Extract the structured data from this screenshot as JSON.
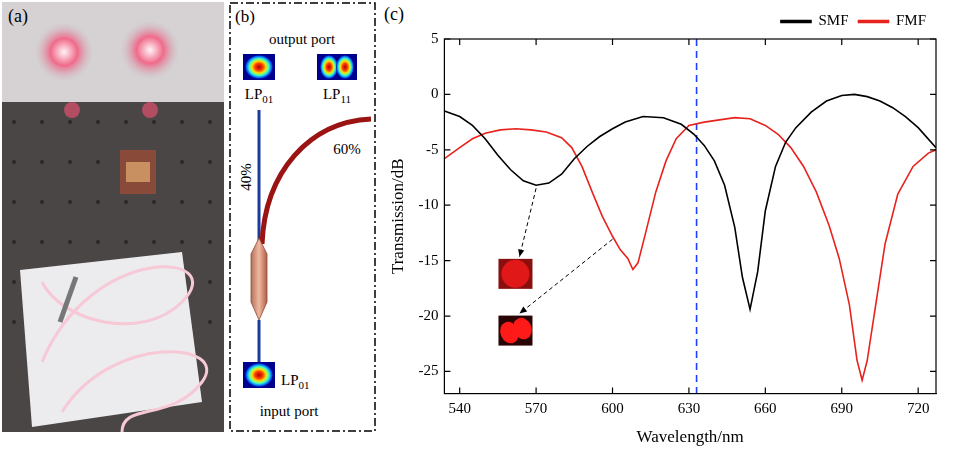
{
  "photo": {
    "label": "(a)"
  },
  "diagram": {
    "label": "(b)",
    "title_top": "output port",
    "output_modes": [
      {
        "text": "LP",
        "subscript": "01"
      },
      {
        "text": "LP",
        "subscript": "11"
      }
    ],
    "split": [
      "40%",
      "60%"
    ],
    "input_mode": {
      "text": "LP",
      "subscript": "01"
    },
    "title_bottom": "input port"
  },
  "chart_data": {
    "type": "line",
    "label": "(c)",
    "x_label": "Wavelength/nm",
    "y_label": "Transmission/dB",
    "xlim": [
      534,
      727
    ],
    "xticks": [
      540,
      570,
      600,
      630,
      660,
      690,
      720
    ],
    "ylim": [
      -27,
      5
    ],
    "yticks": [
      -25,
      -20,
      -15,
      -10,
      -5,
      0,
      5
    ],
    "grid": false,
    "legend": "top-right",
    "series": [
      {
        "name": "SMF",
        "color": "#000000",
        "line_style": "solid",
        "x": [
          534,
          540,
          545,
          550,
          555,
          560,
          565,
          570,
          575,
          580,
          585,
          590,
          595,
          600,
          605,
          612,
          620,
          627,
          632,
          636,
          640,
          644,
          648,
          651,
          654,
          657,
          660,
          664,
          668,
          672,
          678,
          684,
          690,
          695,
          700,
          705,
          710,
          715,
          720,
          727
        ],
        "values": [
          -1.5,
          -2.0,
          -2.8,
          -4.0,
          -5.5,
          -6.8,
          -7.8,
          -8.2,
          -8.0,
          -7.2,
          -5.8,
          -4.7,
          -3.8,
          -3.1,
          -2.5,
          -2.0,
          -2.1,
          -2.7,
          -3.6,
          -4.6,
          -6.0,
          -8.2,
          -12.0,
          -16.5,
          -19.4,
          -16.0,
          -10.5,
          -6.5,
          -4.3,
          -3.0,
          -1.6,
          -0.6,
          -0.1,
          0.0,
          -0.2,
          -0.6,
          -1.2,
          -2.0,
          -3.0,
          -4.8
        ]
      },
      {
        "name": "FMF",
        "color": "#e8221c",
        "line_style": "solid",
        "x": [
          534,
          540,
          545,
          550,
          556,
          562,
          568,
          574,
          580,
          584,
          588,
          592,
          596,
          600,
          603,
          606,
          608,
          610,
          613,
          617,
          621,
          625,
          630,
          636,
          642,
          648,
          654,
          660,
          665,
          670,
          675,
          680,
          685,
          689,
          693,
          696,
          698,
          700,
          703,
          707,
          712,
          718,
          724,
          727
        ],
        "values": [
          -5.8,
          -4.8,
          -4.0,
          -3.5,
          -3.2,
          -3.1,
          -3.2,
          -3.4,
          -3.9,
          -4.8,
          -6.5,
          -8.8,
          -11.0,
          -12.8,
          -14.0,
          -14.8,
          -15.8,
          -15.2,
          -12.5,
          -8.8,
          -6.0,
          -4.0,
          -2.8,
          -2.5,
          -2.3,
          -2.1,
          -2.2,
          -2.8,
          -3.6,
          -4.8,
          -6.5,
          -8.8,
          -11.8,
          -14.8,
          -19.0,
          -24.0,
          -25.8,
          -24.0,
          -19.5,
          -13.5,
          -9.0,
          -6.5,
          -5.3,
          -5.0
        ]
      }
    ],
    "reference_line": {
      "x": 633,
      "color": "#1f3fff",
      "line_style": "dashed"
    },
    "mode_insets": [
      {
        "series": "SMF",
        "x": 570,
        "y": -8.2
      },
      {
        "series": "FMF",
        "x": 600,
        "y": -12.8
      }
    ]
  }
}
